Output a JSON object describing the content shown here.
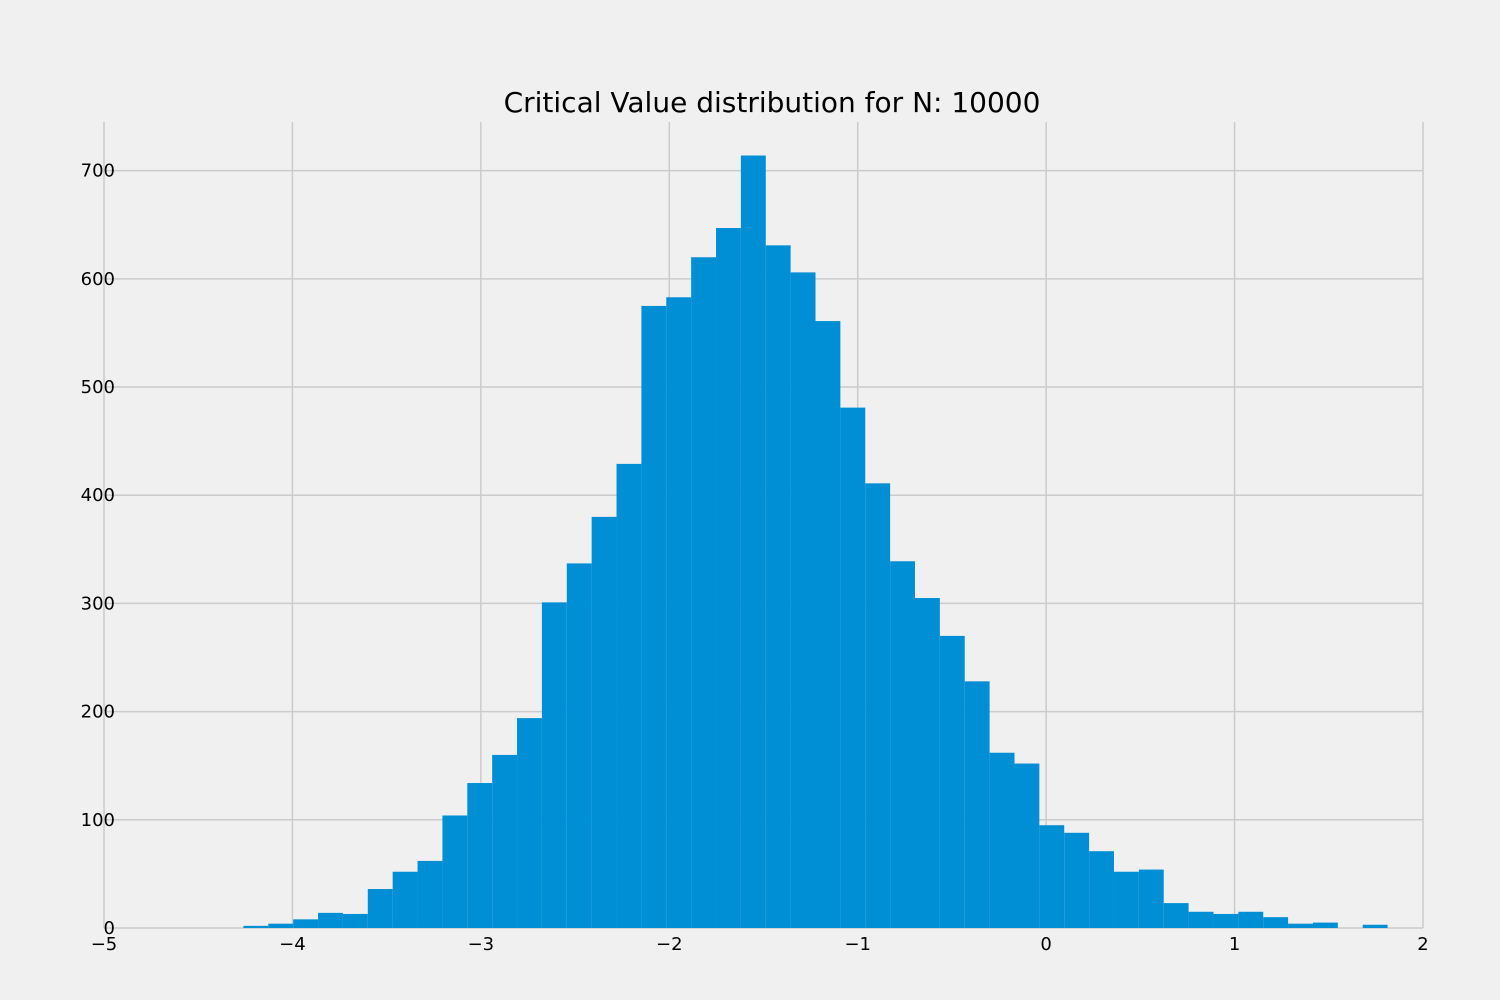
{
  "chart_data": {
    "type": "bar",
    "title": "Critical Value distribution for N: 10000",
    "xlabel": "",
    "ylabel": "",
    "xlim": [
      -5.0,
      2.0
    ],
    "ylim": [
      0,
      745
    ],
    "x_ticks": [
      -5,
      -4,
      -3,
      -2,
      -1,
      0,
      1,
      2
    ],
    "x_tick_labels": [
      "−5",
      "−4",
      "−3",
      "−2",
      "−1",
      "0",
      "1",
      "2"
    ],
    "y_ticks": [
      0,
      100,
      200,
      300,
      400,
      500,
      600,
      700
    ],
    "y_tick_labels": [
      "0",
      "100",
      "200",
      "300",
      "400",
      "500",
      "600",
      "700"
    ],
    "grid": true,
    "bar_color": "#008fd5",
    "bin_edges": [
      -4.26,
      -4.128,
      -3.996,
      -3.864,
      -3.732,
      -3.6,
      -3.468,
      -3.336,
      -3.204,
      -3.072,
      -2.94,
      -2.808,
      -2.676,
      -2.544,
      -2.412,
      -2.28,
      -2.148,
      -2.016,
      -1.884,
      -1.752,
      -1.62,
      -1.488,
      -1.356,
      -1.224,
      -1.092,
      -0.96,
      -0.828,
      -0.696,
      -0.564,
      -0.432,
      -0.3,
      -0.168,
      -0.036,
      0.096,
      0.228,
      0.36,
      0.492,
      0.624,
      0.756,
      0.888,
      1.02,
      1.152,
      1.284,
      1.416,
      1.548,
      1.68,
      1.812
    ],
    "values": [
      2,
      4,
      8,
      14,
      13,
      36,
      52,
      62,
      104,
      134,
      160,
      194,
      301,
      337,
      380,
      429,
      575,
      583,
      620,
      647,
      714,
      631,
      606,
      561,
      481,
      411,
      339,
      305,
      270,
      228,
      162,
      152,
      95,
      88,
      71,
      52,
      54,
      23,
      15,
      13,
      15,
      10,
      4,
      5,
      0,
      3
    ]
  }
}
